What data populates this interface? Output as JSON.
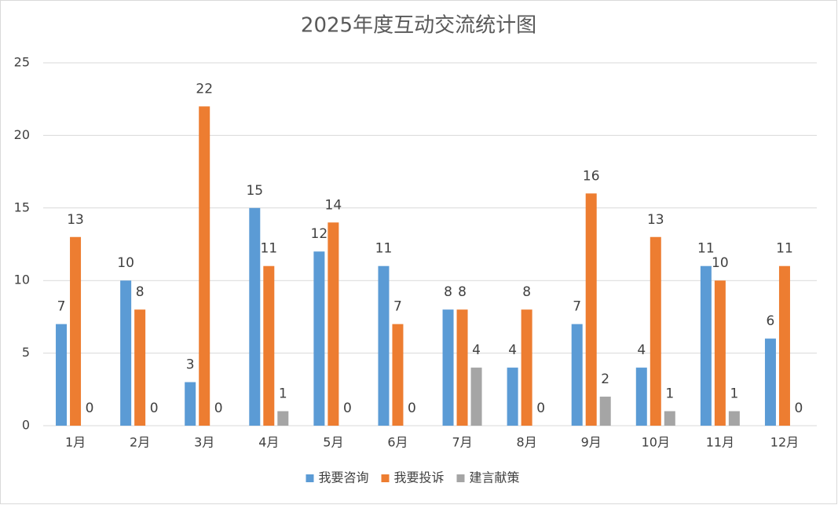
{
  "chart_data": {
    "type": "bar",
    "title": "2025年度互动交流统计图",
    "categories": [
      "1月",
      "2月",
      "3月",
      "4月",
      "5月",
      "6月",
      "7月",
      "8月",
      "9月",
      "10月",
      "11月",
      "12月"
    ],
    "series": [
      {
        "name": "我要咨询",
        "color": "#5b9bd5",
        "values": [
          7,
          10,
          3,
          15,
          12,
          11,
          8,
          4,
          7,
          4,
          11,
          6
        ]
      },
      {
        "name": "我要投诉",
        "color": "#ed7d31",
        "values": [
          13,
          8,
          22,
          11,
          14,
          7,
          8,
          8,
          16,
          13,
          10,
          11
        ]
      },
      {
        "name": "建言献策",
        "color": "#a5a5a5",
        "values": [
          0,
          0,
          0,
          1,
          0,
          0,
          4,
          0,
          2,
          1,
          1,
          0
        ]
      }
    ],
    "ylim": [
      0,
      25
    ],
    "yticks": [
      0,
      5,
      10,
      15,
      20,
      25
    ],
    "grid": true,
    "legend": "bottom"
  }
}
